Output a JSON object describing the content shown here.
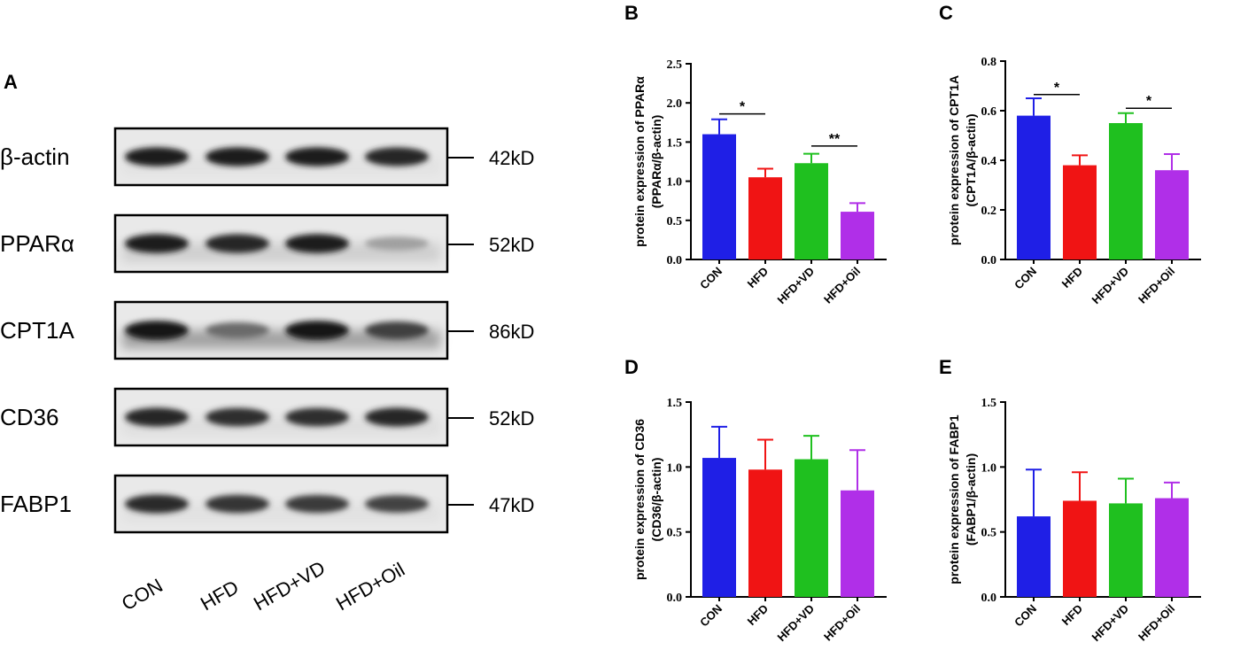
{
  "western_blot": {
    "panel": "A",
    "rows": [
      {
        "protein": "β-actin",
        "size": "42kD",
        "intensities": [
          0.95,
          0.95,
          0.95,
          0.92
        ],
        "smear": 0.05
      },
      {
        "protein": "PPARα",
        "size": "52kD",
        "intensities": [
          0.95,
          0.92,
          0.95,
          0.35
        ],
        "smear": 0.2
      },
      {
        "protein": "CPT1A",
        "size": "86kD",
        "intensities": [
          0.98,
          0.6,
          0.98,
          0.8
        ],
        "smear": 0.55
      },
      {
        "protein": "CD36",
        "size": "52kD",
        "intensities": [
          0.92,
          0.88,
          0.88,
          0.92
        ],
        "smear": 0.08
      },
      {
        "protein": "FABP1",
        "size": "47kD",
        "intensities": [
          0.9,
          0.85,
          0.82,
          0.78
        ],
        "smear": 0.06
      }
    ],
    "lanes": [
      "CON",
      "HFD",
      "HFD+VD",
      "HFD+Oil"
    ]
  },
  "chart_data": [
    {
      "panel": "B",
      "type": "bar",
      "categories": [
        "CON",
        "HFD",
        "HFD+VD",
        "HFD+Oil"
      ],
      "values": [
        1.6,
        1.05,
        1.23,
        0.61
      ],
      "errors": [
        0.19,
        0.11,
        0.12,
        0.11
      ],
      "colors": [
        "#1f1fe6",
        "#f01414",
        "#1fc01f",
        "#b02fe8"
      ],
      "ylabel_lines": [
        "protein expression of PPARα",
        "(PPARα/β-actin)"
      ],
      "ylim": [
        0,
        2.5
      ],
      "yticks": [
        0.0,
        0.5,
        1.0,
        1.5,
        2.0,
        2.5
      ],
      "tick_labels": [
        "0.0",
        "0.5",
        "1.0",
        "1.5",
        "2.0",
        "2.5"
      ],
      "significance": [
        {
          "from": 0,
          "to": 1,
          "y": 1.86,
          "label": "*"
        },
        {
          "from": 2,
          "to": 3,
          "y": 1.45,
          "label": "**"
        }
      ]
    },
    {
      "panel": "C",
      "type": "bar",
      "categories": [
        "CON",
        "HFD",
        "HFD+VD",
        "HFD+Oil"
      ],
      "values": [
        0.58,
        0.38,
        0.55,
        0.36
      ],
      "errors": [
        0.07,
        0.04,
        0.04,
        0.065
      ],
      "colors": [
        "#1f1fe6",
        "#f01414",
        "#1fc01f",
        "#b02fe8"
      ],
      "ylabel_lines": [
        "protein expression of CPT1A",
        "(CPT1A/β-actin)"
      ],
      "ylim": [
        0,
        0.8
      ],
      "yticks": [
        0.0,
        0.2,
        0.4,
        0.6,
        0.8
      ],
      "tick_labels": [
        "0.0",
        "0.2",
        "0.4",
        "0.6",
        "0.8"
      ],
      "significance": [
        {
          "from": 0,
          "to": 1,
          "y": 0.665,
          "label": "*"
        },
        {
          "from": 2,
          "to": 3,
          "y": 0.61,
          "label": "*"
        }
      ]
    },
    {
      "panel": "D",
      "type": "bar",
      "categories": [
        "CON",
        "HFD",
        "HFD+VD",
        "HFD+Oil"
      ],
      "values": [
        1.07,
        0.98,
        1.06,
        0.82
      ],
      "errors": [
        0.24,
        0.23,
        0.18,
        0.31
      ],
      "colors": [
        "#1f1fe6",
        "#f01414",
        "#1fc01f",
        "#b02fe8"
      ],
      "ylabel_lines": [
        "protein expression of CD36",
        "(CD36/β-actin)"
      ],
      "ylim": [
        0,
        1.5
      ],
      "yticks": [
        0.0,
        0.5,
        1.0,
        1.5
      ],
      "tick_labels": [
        "0.0",
        "0.5",
        "1.0",
        "1.5"
      ],
      "significance": []
    },
    {
      "panel": "E",
      "type": "bar",
      "categories": [
        "CON",
        "HFD",
        "HFD+VD",
        "HFD+Oil"
      ],
      "values": [
        0.62,
        0.74,
        0.72,
        0.76
      ],
      "errors": [
        0.36,
        0.22,
        0.19,
        0.12
      ],
      "colors": [
        "#1f1fe6",
        "#f01414",
        "#1fc01f",
        "#b02fe8"
      ],
      "ylabel_lines": [
        "protein expression of FABP1",
        "(FABP1/β-actin)"
      ],
      "ylim": [
        0,
        1.5
      ],
      "yticks": [
        0.0,
        0.5,
        1.0,
        1.5
      ],
      "tick_labels": [
        "0.0",
        "0.5",
        "1.0",
        "1.5"
      ],
      "significance": []
    }
  ]
}
